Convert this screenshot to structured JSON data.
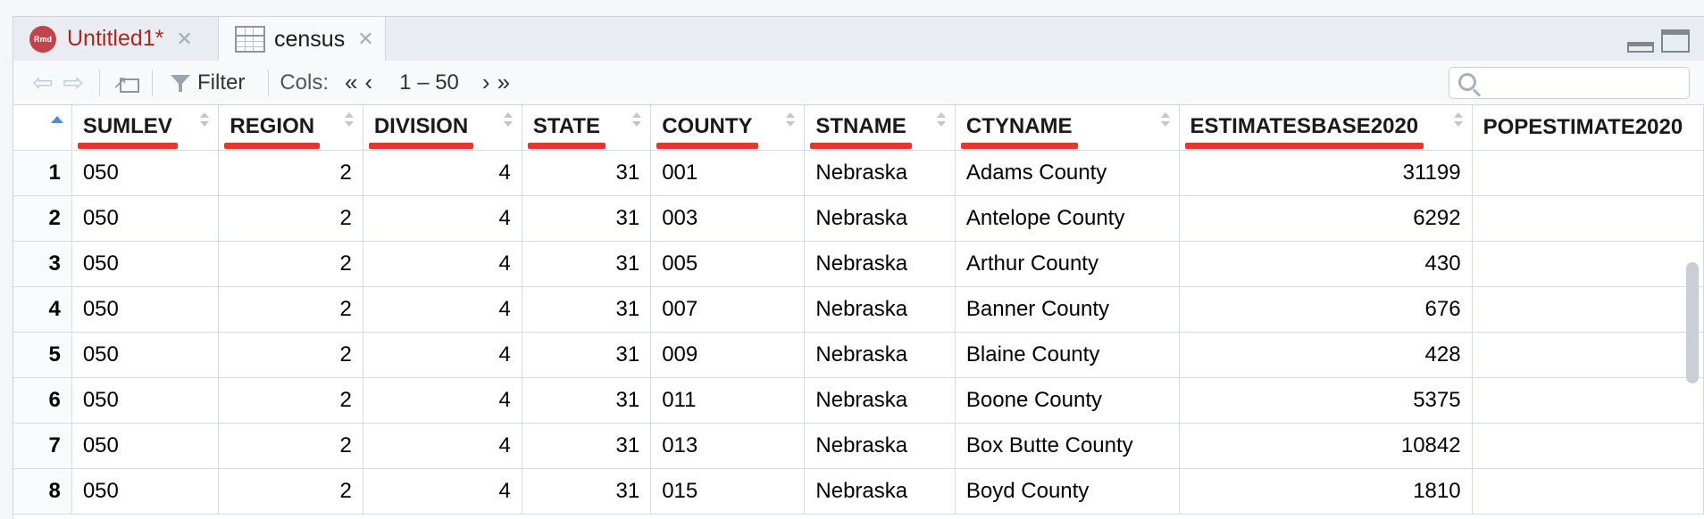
{
  "tabs": [
    {
      "label": "Untitled1*",
      "badge": "Rmd"
    },
    {
      "label": "census"
    }
  ],
  "toolbar": {
    "filter_label": "Filter",
    "cols_label": "Cols:",
    "col_range": "1 – 50",
    "search_placeholder": ""
  },
  "table": {
    "columns": [
      "SUMLEV",
      "REGION",
      "DIVISION",
      "STATE",
      "COUNTY",
      "STNAME",
      "CTYNAME",
      "ESTIMATESBASE2020",
      "POPESTIMATE2020"
    ],
    "rows": [
      [
        "1",
        "050",
        "2",
        "4",
        "31",
        "001",
        "Nebraska",
        "Adams County",
        "31199",
        ""
      ],
      [
        "2",
        "050",
        "2",
        "4",
        "31",
        "003",
        "Nebraska",
        "Antelope County",
        "6292",
        ""
      ],
      [
        "3",
        "050",
        "2",
        "4",
        "31",
        "005",
        "Nebraska",
        "Arthur County",
        "430",
        ""
      ],
      [
        "4",
        "050",
        "2",
        "4",
        "31",
        "007",
        "Nebraska",
        "Banner County",
        "676",
        ""
      ],
      [
        "5",
        "050",
        "2",
        "4",
        "31",
        "009",
        "Nebraska",
        "Blaine County",
        "428",
        ""
      ],
      [
        "6",
        "050",
        "2",
        "4",
        "31",
        "011",
        "Nebraska",
        "Boone County",
        "5375",
        ""
      ],
      [
        "7",
        "050",
        "2",
        "4",
        "31",
        "013",
        "Nebraska",
        "Box Butte County",
        "10842",
        ""
      ],
      [
        "8",
        "050",
        "2",
        "4",
        "31",
        "015",
        "Nebraska",
        "Boyd County",
        "1810",
        ""
      ]
    ]
  },
  "colors": {
    "highlight": "#e8372a",
    "rmd_tab_text": "#b0261f"
  }
}
